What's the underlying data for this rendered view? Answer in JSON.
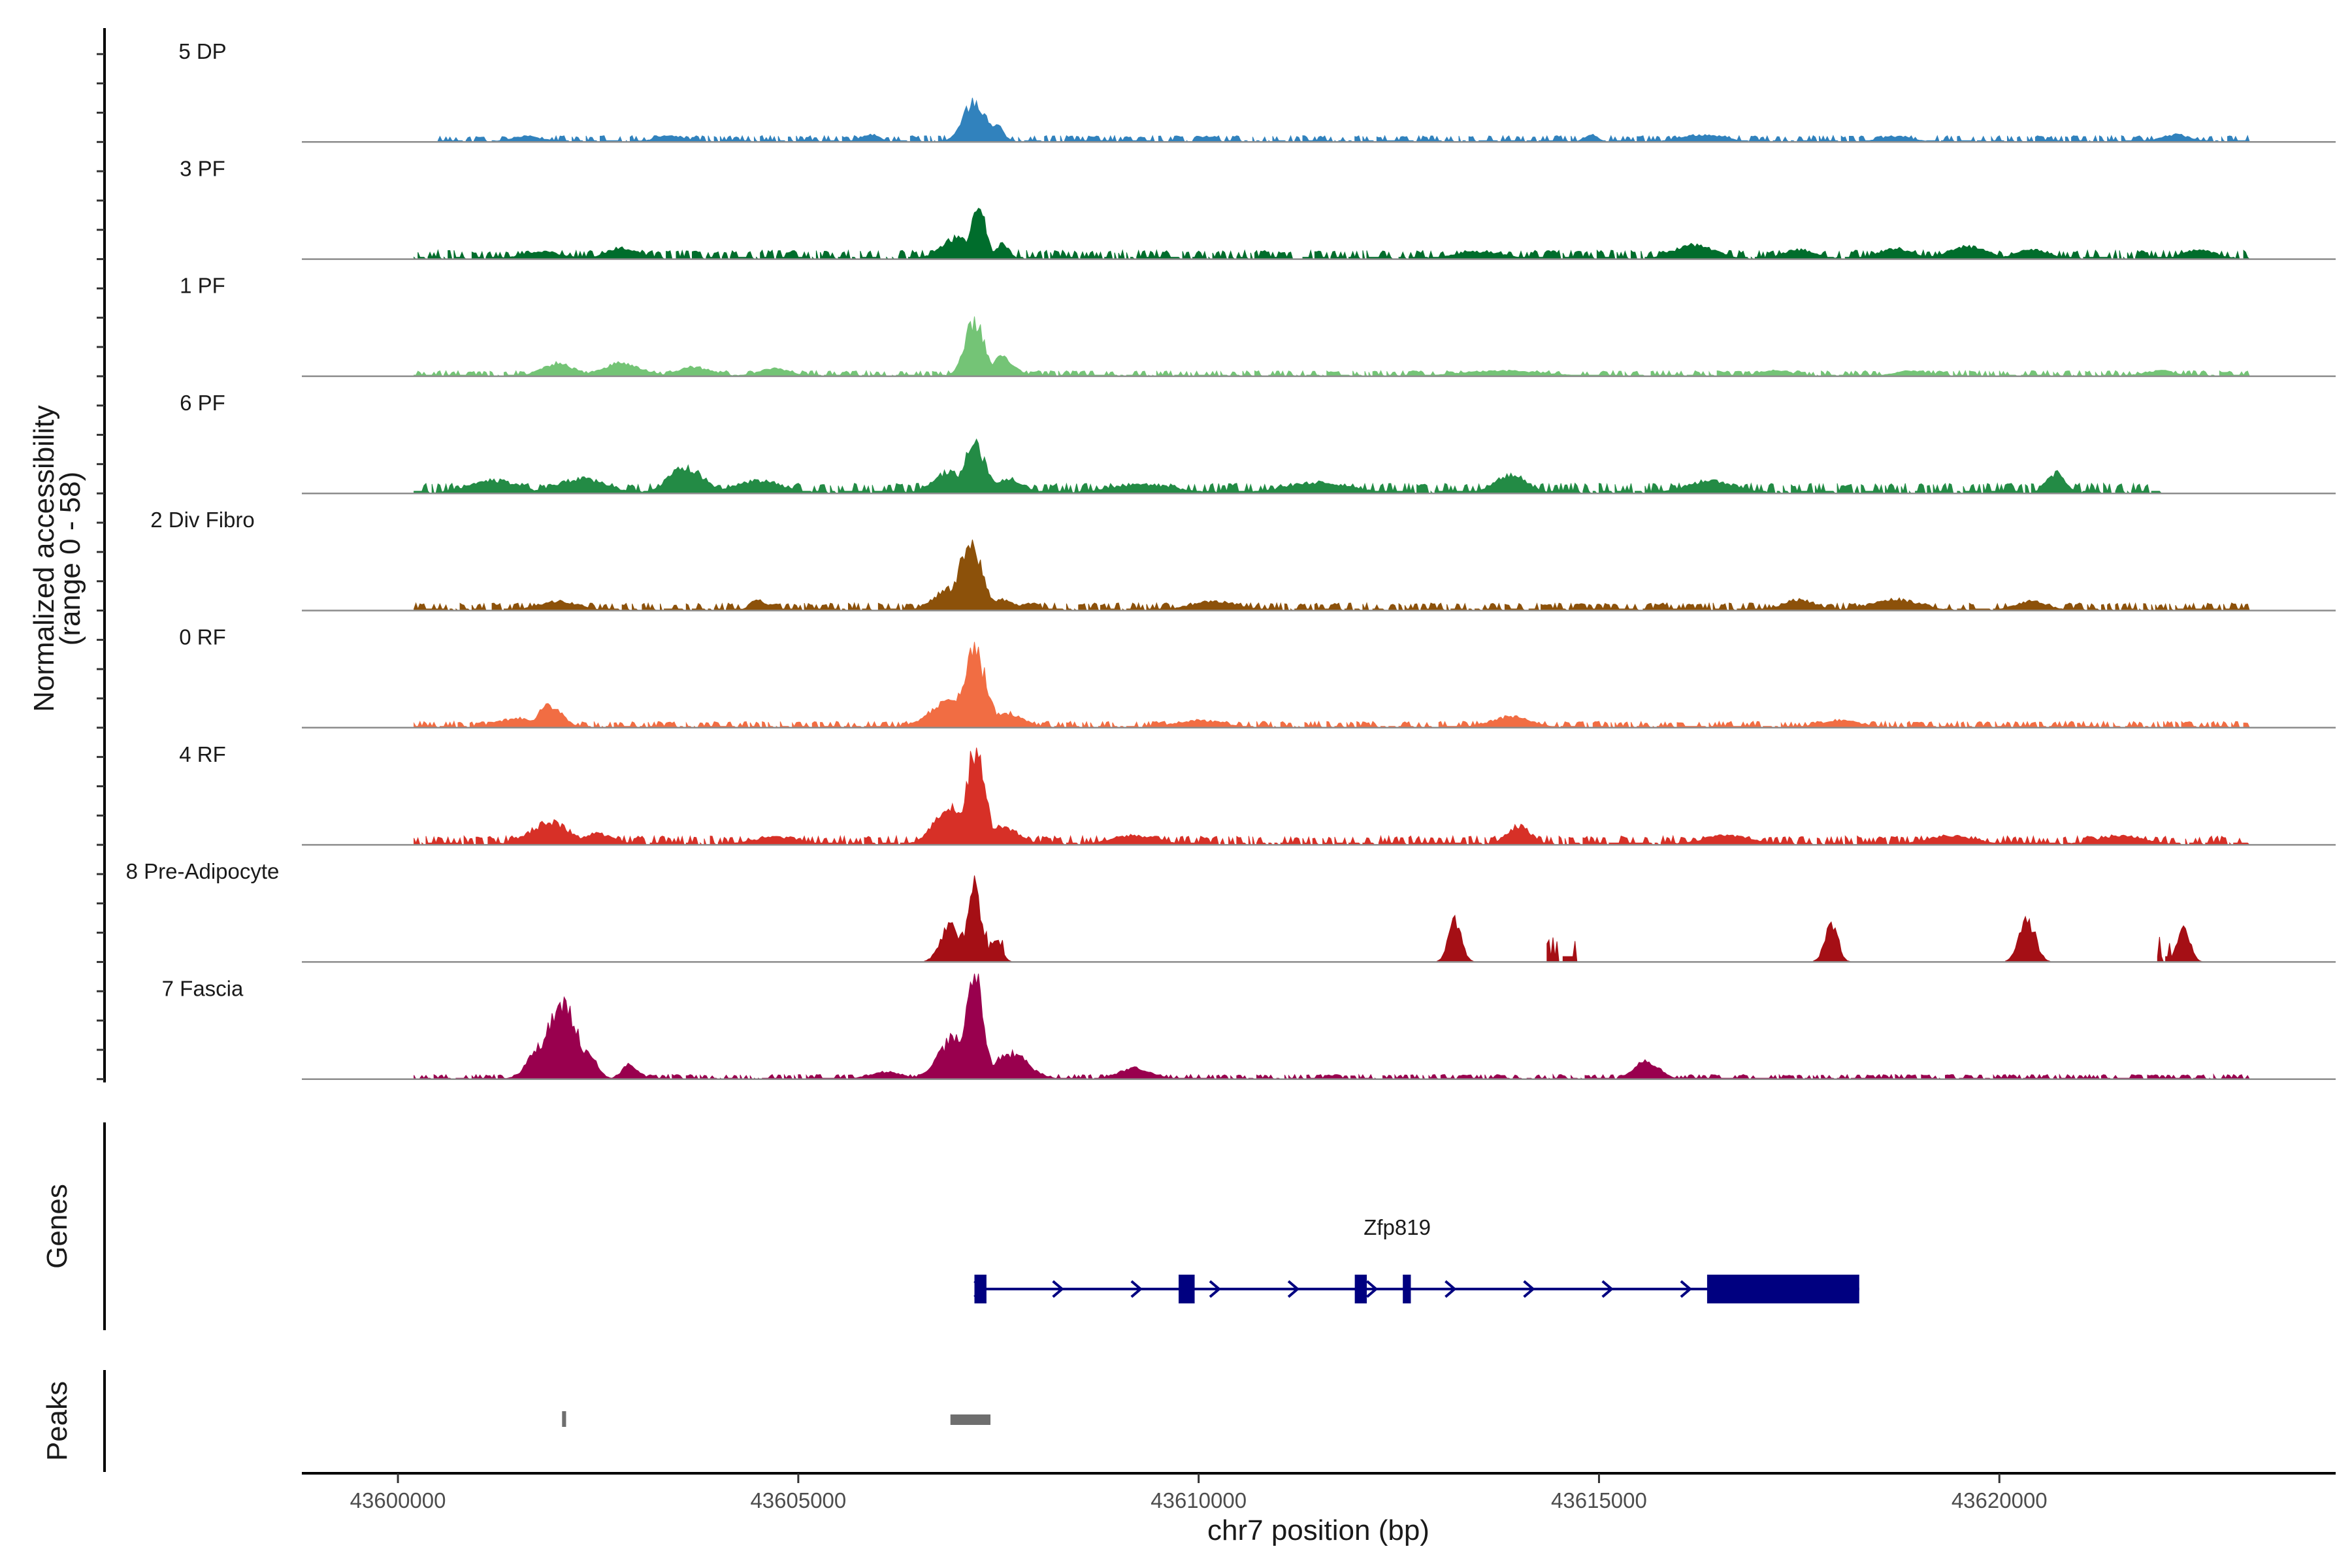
{
  "chart_data": {
    "type": "area",
    "title": "",
    "ylabel_line1": "Normalized accessibility",
    "ylabel_line2": "(range 0 - 58)",
    "y_range": [
      0,
      58
    ],
    "xlabel": "chr7 position (bp)",
    "xlim": [
      43598800,
      43624200
    ],
    "x_ticks": [
      43600000,
      43605000,
      43610000,
      43615000,
      43620000
    ],
    "x_tick_labels": [
      "43600000",
      "43605000",
      "43610000",
      "43615000",
      "43620000"
    ],
    "track_labels": {
      "genes": "Genes",
      "peaks": "Peaks"
    },
    "series": [
      {
        "name": "5 DP",
        "color": "#3182bd",
        "peaks": [
          [
            43607200,
            140,
            22
          ],
          [
            43607450,
            100,
            10
          ],
          [
            43605900,
            110,
            4
          ],
          [
            43616300,
            260,
            4
          ],
          [
            43614900,
            80,
            4
          ],
          [
            43622200,
            180,
            4
          ],
          [
            43603400,
            200,
            3
          ],
          [
            43601600,
            200,
            3
          ],
          [
            43618700,
            200,
            3
          ]
        ],
        "segments": [
          [
            43600500,
            43623100,
            2.5
          ]
        ]
      },
      {
        "name": "3 PF",
        "color": "#006d2c",
        "peaks": [
          [
            43607250,
            90,
            28
          ],
          [
            43607000,
            200,
            12
          ],
          [
            43607550,
            80,
            8
          ],
          [
            43602800,
            200,
            6
          ],
          [
            43616200,
            250,
            8
          ],
          [
            43618700,
            200,
            6
          ],
          [
            43619600,
            250,
            7
          ],
          [
            43620400,
            200,
            5
          ],
          [
            43617500,
            200,
            5
          ],
          [
            43622500,
            200,
            5
          ],
          [
            43601800,
            250,
            4
          ],
          [
            43613500,
            300,
            4
          ]
        ],
        "segments": [
          [
            43600200,
            43623100,
            3.5
          ]
        ]
      },
      {
        "name": "1 PF",
        "color": "#74c476",
        "peaks": [
          [
            43607200,
            120,
            30
          ],
          [
            43607550,
            150,
            10
          ],
          [
            43602000,
            200,
            7
          ],
          [
            43602800,
            250,
            7
          ],
          [
            43603700,
            200,
            5
          ],
          [
            43604700,
            200,
            4
          ],
          [
            43613800,
            500,
            3
          ],
          [
            43617200,
            200,
            3
          ],
          [
            43618900,
            200,
            3
          ],
          [
            43622000,
            200,
            3
          ]
        ],
        "segments": [
          [
            43600200,
            43623100,
            2.2
          ]
        ]
      },
      {
        "name": "6 PF",
        "color": "#238b45",
        "peaks": [
          [
            43607200,
            140,
            26
          ],
          [
            43606900,
            200,
            12
          ],
          [
            43607600,
            200,
            8
          ],
          [
            43603600,
            220,
            14
          ],
          [
            43602300,
            300,
            8
          ],
          [
            43601200,
            300,
            7
          ],
          [
            43604500,
            300,
            7
          ],
          [
            43613900,
            200,
            10
          ],
          [
            43616400,
            300,
            7
          ],
          [
            43620700,
            120,
            11
          ],
          [
            43611500,
            400,
            6
          ],
          [
            43609300,
            400,
            5
          ]
        ],
        "segments": [
          [
            43600200,
            43622000,
            4
          ]
        ]
      },
      {
        "name": "2 Div Fibro",
        "color": "#8c510a",
        "peaks": [
          [
            43607150,
            140,
            38
          ],
          [
            43606900,
            200,
            12
          ],
          [
            43607500,
            200,
            6
          ],
          [
            43604500,
            100,
            6
          ],
          [
            43617500,
            200,
            6
          ],
          [
            43618700,
            300,
            6
          ],
          [
            43620400,
            200,
            5
          ],
          [
            43602000,
            250,
            5
          ],
          [
            43610200,
            300,
            5
          ]
        ],
        "segments": [
          [
            43600200,
            43623100,
            3
          ]
        ]
      },
      {
        "name": "0 RF",
        "color": "#f16d43",
        "peaks": [
          [
            43607200,
            150,
            40
          ],
          [
            43606900,
            250,
            15
          ],
          [
            43607600,
            200,
            8
          ],
          [
            43601900,
            150,
            12
          ],
          [
            43601500,
            250,
            5
          ],
          [
            43613900,
            250,
            6
          ],
          [
            43610000,
            300,
            4
          ],
          [
            43618000,
            250,
            4
          ]
        ],
        "segments": [
          [
            43600200,
            43623100,
            2.5
          ]
        ]
      },
      {
        "name": "4 RF",
        "color": "#d73027",
        "peaks": [
          [
            43607220,
            110,
            54
          ],
          [
            43606900,
            200,
            20
          ],
          [
            43607550,
            200,
            10
          ],
          [
            43601900,
            250,
            12
          ],
          [
            43602500,
            200,
            6
          ],
          [
            43614000,
            150,
            10
          ],
          [
            43616600,
            300,
            5
          ],
          [
            43619400,
            300,
            5
          ],
          [
            43621500,
            300,
            5
          ],
          [
            43609200,
            300,
            5
          ],
          [
            43604700,
            300,
            4
          ]
        ],
        "segments": [
          [
            43600200,
            43623100,
            3.5
          ]
        ]
      },
      {
        "name": "8 Pre-Adipocyte",
        "color": "#a50f15",
        "peaks": [
          [
            43607200,
            80,
            42
          ],
          [
            43606900,
            120,
            20
          ],
          [
            43607450,
            80,
            12
          ],
          [
            43613200,
            80,
            22
          ],
          [
            43617900,
            80,
            20
          ],
          [
            43620350,
            100,
            22
          ],
          [
            43622300,
            80,
            18
          ]
        ],
        "segments": [
          [
            43606800,
            43607350,
            12
          ],
          [
            43607450,
            43607550,
            10
          ],
          [
            43613150,
            43613270,
            10
          ],
          [
            43614350,
            43614500,
            10
          ],
          [
            43614550,
            43614700,
            10
          ],
          [
            43617850,
            43618000,
            9
          ],
          [
            43620250,
            43620450,
            15
          ],
          [
            43621950,
            43622200,
            10
          ],
          [
            43622250,
            43622400,
            10
          ]
        ]
      },
      {
        "name": "7 Fascia",
        "color": "#99004e",
        "peaks": [
          [
            43607200,
            110,
            58
          ],
          [
            43606950,
            200,
            22
          ],
          [
            43607650,
            220,
            14
          ],
          [
            43602050,
            180,
            44
          ],
          [
            43601800,
            160,
            18
          ],
          [
            43602350,
            120,
            16
          ],
          [
            43602900,
            100,
            8
          ],
          [
            43615600,
            150,
            10
          ],
          [
            43609200,
            200,
            6
          ],
          [
            43606100,
            200,
            4
          ]
        ],
        "segments": [
          [
            43600200,
            43623100,
            1.8
          ]
        ]
      }
    ],
    "gene": {
      "name": "Zfp819",
      "strand": "+",
      "start": 43607200,
      "end": 43618250,
      "exons": [
        [
          43607200,
          43607350
        ],
        [
          43609750,
          43609950
        ],
        [
          43611950,
          43612100
        ],
        [
          43612550,
          43612650
        ],
        [
          43616350,
          43618250
        ]
      ]
    },
    "peak_regions": [
      [
        43602050,
        43602100
      ],
      [
        43606900,
        43607400
      ]
    ]
  }
}
